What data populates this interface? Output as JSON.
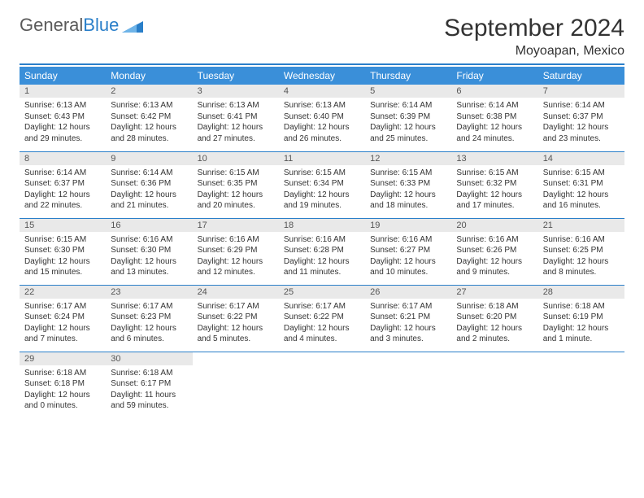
{
  "brand": {
    "name1": "General",
    "name2": "Blue"
  },
  "title": "September 2024",
  "location": "Moyoapan, Mexico",
  "colors": {
    "header_bg": "#3a8fd9",
    "header_text": "#ffffff",
    "accent": "#2a7fc9",
    "daynum_bg": "#e9e9e9",
    "body_text": "#333333"
  },
  "typography": {
    "title_fontsize": 30,
    "subtitle_fontsize": 16,
    "header_fontsize": 12,
    "cell_fontsize": 10
  },
  "calendar": {
    "type": "table",
    "columns": [
      "Sunday",
      "Monday",
      "Tuesday",
      "Wednesday",
      "Thursday",
      "Friday",
      "Saturday"
    ],
    "weeks": [
      [
        {
          "day": "1",
          "sunrise": "Sunrise: 6:13 AM",
          "sunset": "Sunset: 6:43 PM",
          "daylight1": "Daylight: 12 hours",
          "daylight2": "and 29 minutes."
        },
        {
          "day": "2",
          "sunrise": "Sunrise: 6:13 AM",
          "sunset": "Sunset: 6:42 PM",
          "daylight1": "Daylight: 12 hours",
          "daylight2": "and 28 minutes."
        },
        {
          "day": "3",
          "sunrise": "Sunrise: 6:13 AM",
          "sunset": "Sunset: 6:41 PM",
          "daylight1": "Daylight: 12 hours",
          "daylight2": "and 27 minutes."
        },
        {
          "day": "4",
          "sunrise": "Sunrise: 6:13 AM",
          "sunset": "Sunset: 6:40 PM",
          "daylight1": "Daylight: 12 hours",
          "daylight2": "and 26 minutes."
        },
        {
          "day": "5",
          "sunrise": "Sunrise: 6:14 AM",
          "sunset": "Sunset: 6:39 PM",
          "daylight1": "Daylight: 12 hours",
          "daylight2": "and 25 minutes."
        },
        {
          "day": "6",
          "sunrise": "Sunrise: 6:14 AM",
          "sunset": "Sunset: 6:38 PM",
          "daylight1": "Daylight: 12 hours",
          "daylight2": "and 24 minutes."
        },
        {
          "day": "7",
          "sunrise": "Sunrise: 6:14 AM",
          "sunset": "Sunset: 6:37 PM",
          "daylight1": "Daylight: 12 hours",
          "daylight2": "and 23 minutes."
        }
      ],
      [
        {
          "day": "8",
          "sunrise": "Sunrise: 6:14 AM",
          "sunset": "Sunset: 6:37 PM",
          "daylight1": "Daylight: 12 hours",
          "daylight2": "and 22 minutes."
        },
        {
          "day": "9",
          "sunrise": "Sunrise: 6:14 AM",
          "sunset": "Sunset: 6:36 PM",
          "daylight1": "Daylight: 12 hours",
          "daylight2": "and 21 minutes."
        },
        {
          "day": "10",
          "sunrise": "Sunrise: 6:15 AM",
          "sunset": "Sunset: 6:35 PM",
          "daylight1": "Daylight: 12 hours",
          "daylight2": "and 20 minutes."
        },
        {
          "day": "11",
          "sunrise": "Sunrise: 6:15 AM",
          "sunset": "Sunset: 6:34 PM",
          "daylight1": "Daylight: 12 hours",
          "daylight2": "and 19 minutes."
        },
        {
          "day": "12",
          "sunrise": "Sunrise: 6:15 AM",
          "sunset": "Sunset: 6:33 PM",
          "daylight1": "Daylight: 12 hours",
          "daylight2": "and 18 minutes."
        },
        {
          "day": "13",
          "sunrise": "Sunrise: 6:15 AM",
          "sunset": "Sunset: 6:32 PM",
          "daylight1": "Daylight: 12 hours",
          "daylight2": "and 17 minutes."
        },
        {
          "day": "14",
          "sunrise": "Sunrise: 6:15 AM",
          "sunset": "Sunset: 6:31 PM",
          "daylight1": "Daylight: 12 hours",
          "daylight2": "and 16 minutes."
        }
      ],
      [
        {
          "day": "15",
          "sunrise": "Sunrise: 6:15 AM",
          "sunset": "Sunset: 6:30 PM",
          "daylight1": "Daylight: 12 hours",
          "daylight2": "and 15 minutes."
        },
        {
          "day": "16",
          "sunrise": "Sunrise: 6:16 AM",
          "sunset": "Sunset: 6:30 PM",
          "daylight1": "Daylight: 12 hours",
          "daylight2": "and 13 minutes."
        },
        {
          "day": "17",
          "sunrise": "Sunrise: 6:16 AM",
          "sunset": "Sunset: 6:29 PM",
          "daylight1": "Daylight: 12 hours",
          "daylight2": "and 12 minutes."
        },
        {
          "day": "18",
          "sunrise": "Sunrise: 6:16 AM",
          "sunset": "Sunset: 6:28 PM",
          "daylight1": "Daylight: 12 hours",
          "daylight2": "and 11 minutes."
        },
        {
          "day": "19",
          "sunrise": "Sunrise: 6:16 AM",
          "sunset": "Sunset: 6:27 PM",
          "daylight1": "Daylight: 12 hours",
          "daylight2": "and 10 minutes."
        },
        {
          "day": "20",
          "sunrise": "Sunrise: 6:16 AM",
          "sunset": "Sunset: 6:26 PM",
          "daylight1": "Daylight: 12 hours",
          "daylight2": "and 9 minutes."
        },
        {
          "day": "21",
          "sunrise": "Sunrise: 6:16 AM",
          "sunset": "Sunset: 6:25 PM",
          "daylight1": "Daylight: 12 hours",
          "daylight2": "and 8 minutes."
        }
      ],
      [
        {
          "day": "22",
          "sunrise": "Sunrise: 6:17 AM",
          "sunset": "Sunset: 6:24 PM",
          "daylight1": "Daylight: 12 hours",
          "daylight2": "and 7 minutes."
        },
        {
          "day": "23",
          "sunrise": "Sunrise: 6:17 AM",
          "sunset": "Sunset: 6:23 PM",
          "daylight1": "Daylight: 12 hours",
          "daylight2": "and 6 minutes."
        },
        {
          "day": "24",
          "sunrise": "Sunrise: 6:17 AM",
          "sunset": "Sunset: 6:22 PM",
          "daylight1": "Daylight: 12 hours",
          "daylight2": "and 5 minutes."
        },
        {
          "day": "25",
          "sunrise": "Sunrise: 6:17 AM",
          "sunset": "Sunset: 6:22 PM",
          "daylight1": "Daylight: 12 hours",
          "daylight2": "and 4 minutes."
        },
        {
          "day": "26",
          "sunrise": "Sunrise: 6:17 AM",
          "sunset": "Sunset: 6:21 PM",
          "daylight1": "Daylight: 12 hours",
          "daylight2": "and 3 minutes."
        },
        {
          "day": "27",
          "sunrise": "Sunrise: 6:18 AM",
          "sunset": "Sunset: 6:20 PM",
          "daylight1": "Daylight: 12 hours",
          "daylight2": "and 2 minutes."
        },
        {
          "day": "28",
          "sunrise": "Sunrise: 6:18 AM",
          "sunset": "Sunset: 6:19 PM",
          "daylight1": "Daylight: 12 hours",
          "daylight2": "and 1 minute."
        }
      ],
      [
        {
          "day": "29",
          "sunrise": "Sunrise: 6:18 AM",
          "sunset": "Sunset: 6:18 PM",
          "daylight1": "Daylight: 12 hours",
          "daylight2": "and 0 minutes."
        },
        {
          "day": "30",
          "sunrise": "Sunrise: 6:18 AM",
          "sunset": "Sunset: 6:17 PM",
          "daylight1": "Daylight: 11 hours",
          "daylight2": "and 59 minutes."
        },
        {
          "empty": true
        },
        {
          "empty": true
        },
        {
          "empty": true
        },
        {
          "empty": true
        },
        {
          "empty": true
        }
      ]
    ]
  }
}
